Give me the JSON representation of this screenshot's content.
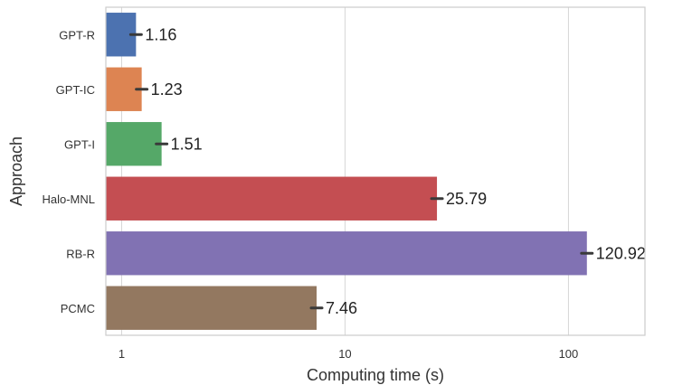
{
  "chart_data": {
    "type": "bar",
    "orientation": "horizontal",
    "categories": [
      "GPT-R",
      "GPT-IC",
      "GPT-I",
      "Halo-MNL",
      "RB-R",
      "PCMC"
    ],
    "values": [
      1.16,
      1.23,
      1.51,
      25.79,
      120.92,
      7.46
    ],
    "value_labels": [
      "1.16",
      "1.23",
      "1.51",
      "25.79",
      "120.92",
      "7.46"
    ],
    "colors": [
      "#4c72b0",
      "#dd8452",
      "#55a868",
      "#c44e52",
      "#8172b3",
      "#937860"
    ],
    "xlabel": "Computing time (s)",
    "ylabel": "Approach",
    "x_scale": "log",
    "xlim": [
      0.85,
      220
    ],
    "x_ticks": [
      1,
      10,
      100
    ],
    "x_tick_labels": [
      "1",
      "10",
      "100"
    ],
    "grid": true,
    "error_bars": true
  }
}
